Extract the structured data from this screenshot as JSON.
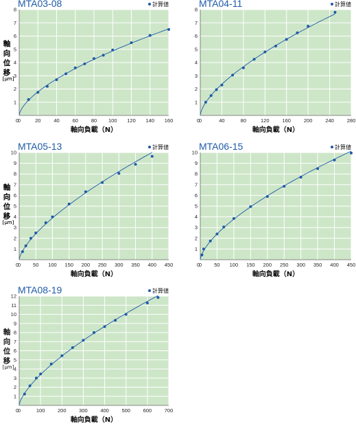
{
  "colors": {
    "plot_bg": "#cde6c8",
    "grid": "#ffffff",
    "series": "#1e5aa8",
    "title": "#1e5aa8"
  },
  "chart_data": [
    {
      "type": "scatter",
      "title": "MTA03-08",
      "legend": "計算値",
      "legend_position": "top-right",
      "xlabel": "軸向負載（N）",
      "ylabel": "軸向位移",
      "yunit": "[µm]",
      "xlim": [
        0,
        160
      ],
      "ylim": [
        0,
        8
      ],
      "xticks": [
        0,
        20,
        40,
        60,
        80,
        100,
        120,
        140,
        160
      ],
      "yticks": [
        1,
        2,
        3,
        4,
        5,
        6,
        7,
        8
      ],
      "grid": true,
      "series": [
        {
          "x": [
            10,
            20,
            30,
            40,
            50,
            60,
            70,
            80,
            90,
            100,
            120,
            140,
            160
          ],
          "y": [
            1.2,
            1.75,
            2.2,
            2.7,
            3.15,
            3.6,
            3.9,
            4.3,
            4.55,
            4.95,
            5.5,
            6.05,
            6.5
          ]
        }
      ]
    },
    {
      "type": "scatter",
      "title": "MTA04-11",
      "legend": "計算値",
      "legend_position": "top-right",
      "xlabel": "軸向負載（N）",
      "ylabel": "軸向位移",
      "yunit": "[µm]",
      "xlim": [
        0,
        280
      ],
      "ylim": [
        0,
        8
      ],
      "xticks": [
        0,
        40,
        80,
        120,
        160,
        200,
        240,
        280
      ],
      "yticks": [
        1,
        2,
        3,
        4,
        5,
        6,
        7,
        8
      ],
      "grid": true,
      "series": [
        {
          "x": [
            10,
            20,
            30,
            40,
            60,
            80,
            100,
            120,
            140,
            160,
            180,
            200,
            250
          ],
          "y": [
            1.0,
            1.5,
            1.95,
            2.3,
            3.05,
            3.6,
            4.25,
            4.8,
            5.25,
            5.75,
            6.25,
            6.75,
            7.8
          ]
        }
      ]
    },
    {
      "type": "scatter",
      "title": "MTA05-13",
      "legend": "計算値",
      "legend_position": "top-right",
      "xlabel": "軸向負載（N）",
      "ylabel": "軸向位移",
      "yunit": "[µm]",
      "xlim": [
        0,
        450
      ],
      "ylim": [
        0,
        10
      ],
      "xticks": [
        0,
        50,
        100,
        150,
        200,
        250,
        300,
        350,
        400,
        450
      ],
      "yticks": [
        1,
        2,
        3,
        4,
        5,
        6,
        7,
        8,
        9,
        10
      ],
      "grid": true,
      "series": [
        {
          "x": [
            10,
            20,
            35,
            50,
            80,
            100,
            150,
            200,
            250,
            300,
            350,
            400
          ],
          "y": [
            0.75,
            1.3,
            2.0,
            2.5,
            3.45,
            4.0,
            5.2,
            6.35,
            7.2,
            8.05,
            8.9,
            9.65
          ]
        }
      ]
    },
    {
      "type": "scatter",
      "title": "MTA06-15",
      "legend": "計算値",
      "legend_position": "top-right",
      "xlabel": "軸向負載（N）",
      "ylabel": "軸向位移",
      "yunit": "[µm]",
      "xlim": [
        0,
        450
      ],
      "ylim": [
        0,
        10
      ],
      "xticks": [
        0,
        50,
        100,
        150,
        200,
        250,
        300,
        350,
        400,
        450
      ],
      "yticks": [
        1,
        2,
        3,
        4,
        5,
        6,
        7,
        8,
        9,
        10
      ],
      "grid": true,
      "series": [
        {
          "x": [
            5,
            10,
            30,
            50,
            70,
            100,
            150,
            200,
            250,
            300,
            350,
            400,
            450
          ],
          "y": [
            0.45,
            1.0,
            1.75,
            2.4,
            3.05,
            3.85,
            4.95,
            5.9,
            6.85,
            7.7,
            8.5,
            9.3,
            9.95
          ]
        }
      ]
    },
    {
      "type": "scatter",
      "title": "MTA08-19",
      "legend": "計算値",
      "legend_position": "top-right",
      "xlabel": "軸向負載（N）",
      "ylabel": "軸向位移",
      "yunit": "[µm]",
      "xlim": [
        0,
        700
      ],
      "ylim": [
        0,
        12
      ],
      "xticks": [
        0,
        100,
        200,
        300,
        400,
        500,
        600,
        700
      ],
      "yticks": [
        1,
        2,
        3,
        4,
        5,
        6,
        7,
        8,
        9,
        10,
        11,
        12
      ],
      "grid": true,
      "series": [
        {
          "x": [
            25,
            50,
            80,
            100,
            150,
            200,
            250,
            300,
            350,
            400,
            450,
            500,
            600,
            650
          ],
          "y": [
            1.25,
            2.15,
            3.0,
            3.45,
            4.55,
            5.45,
            6.35,
            7.15,
            8.0,
            8.65,
            9.35,
            10.0,
            11.25,
            11.85
          ]
        }
      ]
    }
  ]
}
